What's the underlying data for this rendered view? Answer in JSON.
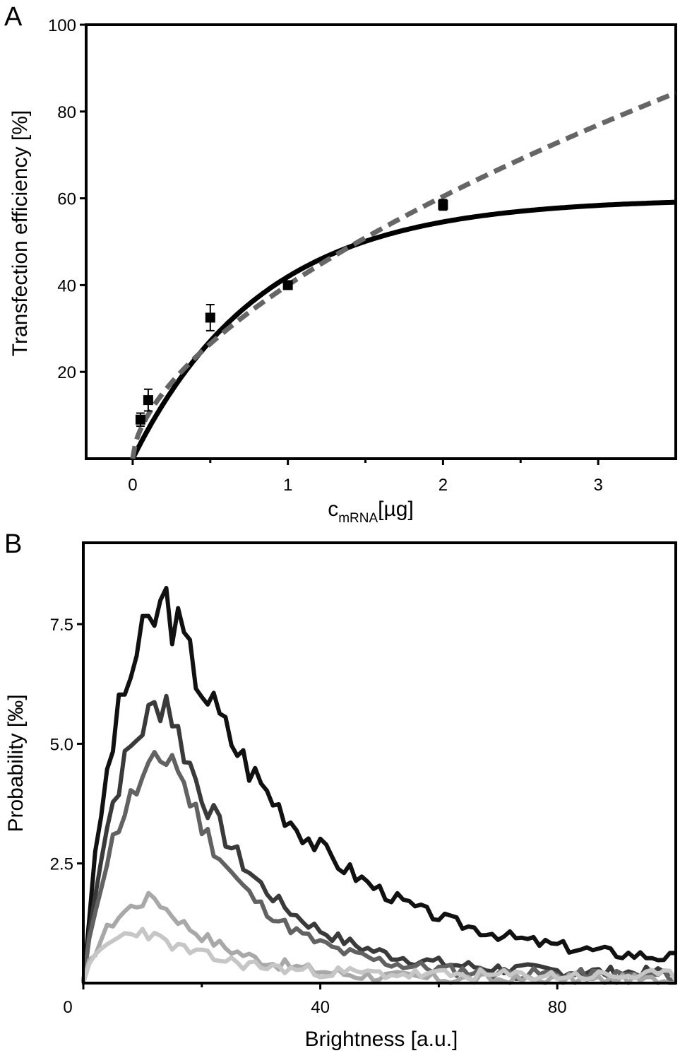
{
  "chart_data": [
    {
      "type": "scatter",
      "panel_label": "A",
      "xlabel": "c",
      "xlabel_sub": "mRNA",
      "xlabel_unit": "[µg]",
      "ylabel": "Transfection efficiency [%]",
      "xlim": [
        -0.3,
        3.5
      ],
      "ylim": [
        0,
        100
      ],
      "xticks": [
        0,
        1,
        2,
        3
      ],
      "xtick_labels": [
        "0",
        "1",
        "2",
        "3"
      ],
      "yticks": [
        20,
        40,
        60,
        80,
        100
      ],
      "ytick_labels": [
        "20",
        "40",
        "60",
        "80",
        "100"
      ],
      "grid": false,
      "points": [
        {
          "x": 0.05,
          "y": 9,
          "err": 1.5
        },
        {
          "x": 0.1,
          "y": 13.5,
          "err": 2.5
        },
        {
          "x": 0.5,
          "y": 32.5,
          "err": 3
        },
        {
          "x": 1.0,
          "y": 40,
          "err": 0.8
        },
        {
          "x": 2.0,
          "y": 58.5,
          "err": 1.2
        }
      ],
      "fits": [
        {
          "style": "solid",
          "color": "#000000",
          "model": "saturation",
          "ymax": 60,
          "k": 1.2
        },
        {
          "style": "dashed",
          "color": "#666666",
          "model": "power",
          "a": 40,
          "b": 0.595
        }
      ]
    },
    {
      "type": "line",
      "panel_label": "B",
      "xlabel": "Brightness [a.u.]",
      "ylabel": "Probability [‰]",
      "xlim": [
        0,
        100
      ],
      "ylim": [
        0,
        9.2
      ],
      "xticks": [
        0,
        40,
        80
      ],
      "xtick_labels": [
        "0",
        "40",
        "80"
      ],
      "yticks": [
        2.5,
        5.0,
        7.5
      ],
      "ytick_labels": [
        "2.5",
        "5.0",
        "7.5"
      ],
      "grid": false,
      "series": [
        {
          "color": "#111111",
          "peak": 8.0,
          "peak_x": 14,
          "rise": 5,
          "decay": 23,
          "base": 0.35,
          "seed": 3
        },
        {
          "color": "#3a3a3a",
          "peak": 6.0,
          "peak_x": 14,
          "rise": 5,
          "decay": 14,
          "base": 0.2,
          "seed": 7
        },
        {
          "color": "#626262",
          "peak": 4.8,
          "peak_x": 15,
          "rise": 5,
          "decay": 13,
          "base": 0.15,
          "seed": 11
        },
        {
          "color": "#a8a8a8",
          "peak": 1.8,
          "peak_x": 12,
          "rise": 4,
          "decay": 13,
          "base": 0.05,
          "seed": 17
        },
        {
          "color": "#c6c6c6",
          "peak": 1.1,
          "peak_x": 10,
          "rise": 3,
          "decay": 13,
          "base": 0.15,
          "seed": 23
        }
      ]
    }
  ]
}
